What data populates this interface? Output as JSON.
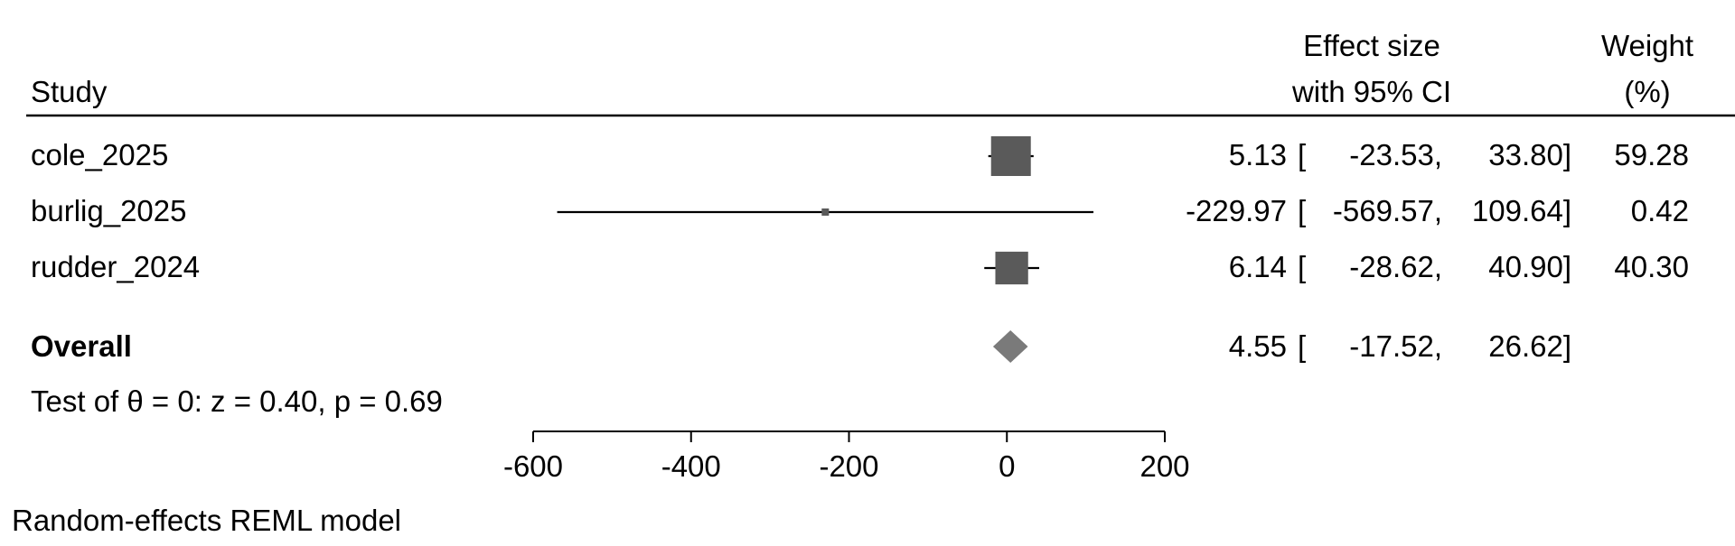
{
  "chart_data": {
    "type": "forest",
    "header": {
      "study": "Study",
      "effect_line1": "Effect size",
      "effect_line2": "with 95% CI",
      "weight_line1": "Weight",
      "weight_line2": "(%)"
    },
    "studies": [
      {
        "label": "cole_2025",
        "estimate": 5.13,
        "ci_low": -23.53,
        "ci_high": 33.8,
        "weight": 59.28,
        "est_text": "5.13",
        "low_text": "-23.53,",
        "high_text": "33.80]",
        "weight_text": "59.28"
      },
      {
        "label": "burlig_2025",
        "estimate": -229.97,
        "ci_low": -569.57,
        "ci_high": 109.64,
        "weight": 0.42,
        "est_text": "-229.97",
        "low_text": "-569.57,",
        "high_text": "109.64]",
        "weight_text": "0.42"
      },
      {
        "label": "rudder_2024",
        "estimate": 6.14,
        "ci_low": -28.62,
        "ci_high": 40.9,
        "weight": 40.3,
        "est_text": "6.14",
        "low_text": "-28.62,",
        "high_text": "40.90]",
        "weight_text": "40.30"
      }
    ],
    "overall": {
      "label": "Overall",
      "estimate": 4.55,
      "ci_low": -17.52,
      "ci_high": 26.62,
      "est_text": "4.55",
      "low_text": "-17.52,",
      "high_text": "26.62]"
    },
    "test_text": "Test of θ = 0: z = 0.40, p = 0.69",
    "footnote": "Random-effects REML model",
    "bracket_open": "[",
    "x_axis": {
      "range": [
        -600,
        200
      ],
      "ticks": [
        -600,
        -400,
        -200,
        0,
        200
      ]
    },
    "colors": {
      "marker": "#5a5a5a",
      "diamond": "#7a7a7a",
      "line": "#000000"
    }
  }
}
